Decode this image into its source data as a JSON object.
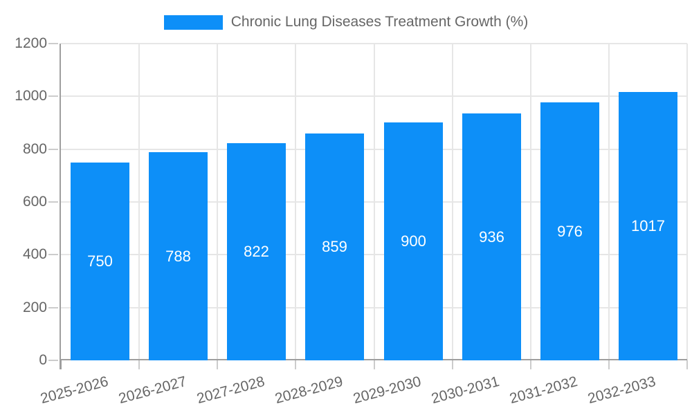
{
  "chart_data": {
    "type": "bar",
    "title": "Chronic Lung Diseases Treatment Growth (%)",
    "legend": {
      "label": "Chronic Lung Diseases Treatment Growth (%)",
      "position": "top"
    },
    "categories": [
      "2025-2026",
      "2026-2027",
      "2027-2028",
      "2028-2029",
      "2029-2030",
      "2030-2031",
      "2031-2032",
      "2032-2033"
    ],
    "values": [
      750,
      788,
      822,
      859,
      900,
      936,
      976,
      1017
    ],
    "xlabel": "",
    "ylabel": "",
    "ylim": [
      0,
      1200
    ],
    "yticks": [
      0,
      200,
      400,
      600,
      800,
      1000,
      1200
    ],
    "grid": true,
    "bar_labels_inside": true,
    "colors": {
      "bar": "#0d8ff8",
      "bar_label": "#ffffff",
      "axis_text": "#666666",
      "grid": "#e6e6e6",
      "tick": "#cccccc",
      "axis_line": "#9e9e9e",
      "background": "#ffffff"
    }
  }
}
